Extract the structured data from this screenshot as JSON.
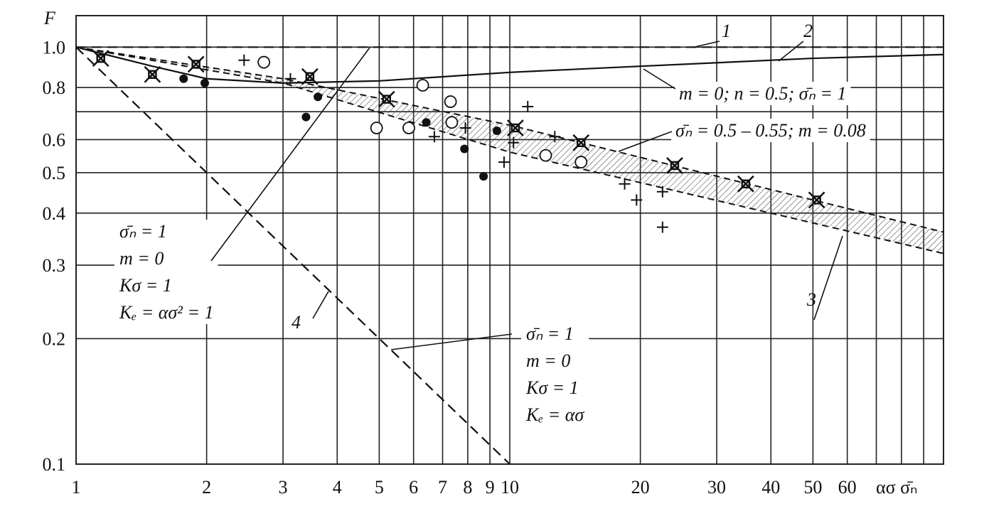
{
  "chart_data": {
    "type": "line",
    "title": "F",
    "x_label": "ασ σ̄ₙ",
    "log_x": true,
    "log_y": true,
    "grid": true,
    "xlim": [
      1,
      100
    ],
    "ylim": [
      0.1,
      1.19
    ],
    "xticks": [
      1,
      2,
      3,
      4,
      5,
      6,
      7,
      8,
      9,
      10,
      20,
      30,
      40,
      50,
      60
    ],
    "yticks": [
      {
        "value": 1,
        "label": "1.0"
      },
      0.8,
      0.6,
      0.5,
      0.4,
      0.3,
      0.2,
      0.1
    ],
    "minor_grid": {
      "x": [
        70,
        80,
        90
      ],
      "y": [
        0.7
      ]
    },
    "series": [
      {
        "name": "1",
        "style": "dashed",
        "x": [
          1,
          100
        ],
        "values": [
          1.0,
          1.0
        ]
      },
      {
        "name": "2",
        "style": "solid",
        "x": [
          1,
          1.5,
          2,
          3,
          5,
          10,
          20,
          50,
          100
        ],
        "values": [
          1.0,
          0.9,
          0.84,
          0.82,
          0.83,
          0.87,
          0.9,
          0.94,
          0.96
        ]
      },
      {
        "name": "4",
        "style": "dashed",
        "x": [
          1,
          10
        ],
        "values": [
          1.0,
          0.1
        ]
      }
    ],
    "band": {
      "name": "3",
      "x": [
        1,
        3,
        10,
        100
      ],
      "upper": [
        1.0,
        0.84,
        0.65,
        0.36
      ],
      "lower": [
        1.0,
        0.82,
        0.56,
        0.32
      ]
    },
    "points": [
      {
        "marker": "filled-circle",
        "x": [
          1.77,
          1.98,
          3.61,
          3.39,
          6.42,
          7.86,
          8.7,
          9.34
        ],
        "values": [
          0.84,
          0.82,
          0.76,
          0.68,
          0.66,
          0.57,
          0.49,
          0.63
        ]
      },
      {
        "marker": "open-circle",
        "x": [
          2.71,
          6.3,
          7.3,
          7.35,
          4.93,
          5.85,
          12.1,
          14.6
        ],
        "values": [
          0.92,
          0.81,
          0.74,
          0.66,
          0.64,
          0.64,
          0.55,
          0.53
        ]
      },
      {
        "marker": "plus",
        "x": [
          2.44,
          3.12,
          11.0,
          7.9,
          6.7,
          10.2,
          9.7,
          12.7,
          18.4,
          19.6,
          22.5,
          22.5
        ],
        "values": [
          0.93,
          0.84,
          0.72,
          0.64,
          0.61,
          0.59,
          0.53,
          0.61,
          0.47,
          0.43,
          0.45,
          0.37
        ]
      },
      {
        "marker": "star",
        "x": [
          1.14,
          1.5,
          1.89,
          3.46,
          5.2,
          10.3,
          14.6,
          24,
          35,
          51
        ],
        "values": [
          0.94,
          0.86,
          0.91,
          0.85,
          0.75,
          0.64,
          0.59,
          0.52,
          0.47,
          0.43
        ]
      }
    ],
    "annotations": [
      {
        "lines": [
          "m = 0; n = 0.5;  σ̄ₙ = 1"
        ]
      },
      {
        "lines": [
          "σ̄ₙ = 0.5 – 0.55; m = 0.08"
        ]
      },
      {
        "lines": [
          "σ̄ₙ = 1",
          "m = 0",
          "Kσ = 1",
          "Kₑ = ασ² = 1"
        ]
      },
      {
        "lines": [
          "σ̄ₙ = 1",
          "m = 0",
          "Kσ = 1",
          "Kₑ = ασ"
        ]
      }
    ]
  }
}
